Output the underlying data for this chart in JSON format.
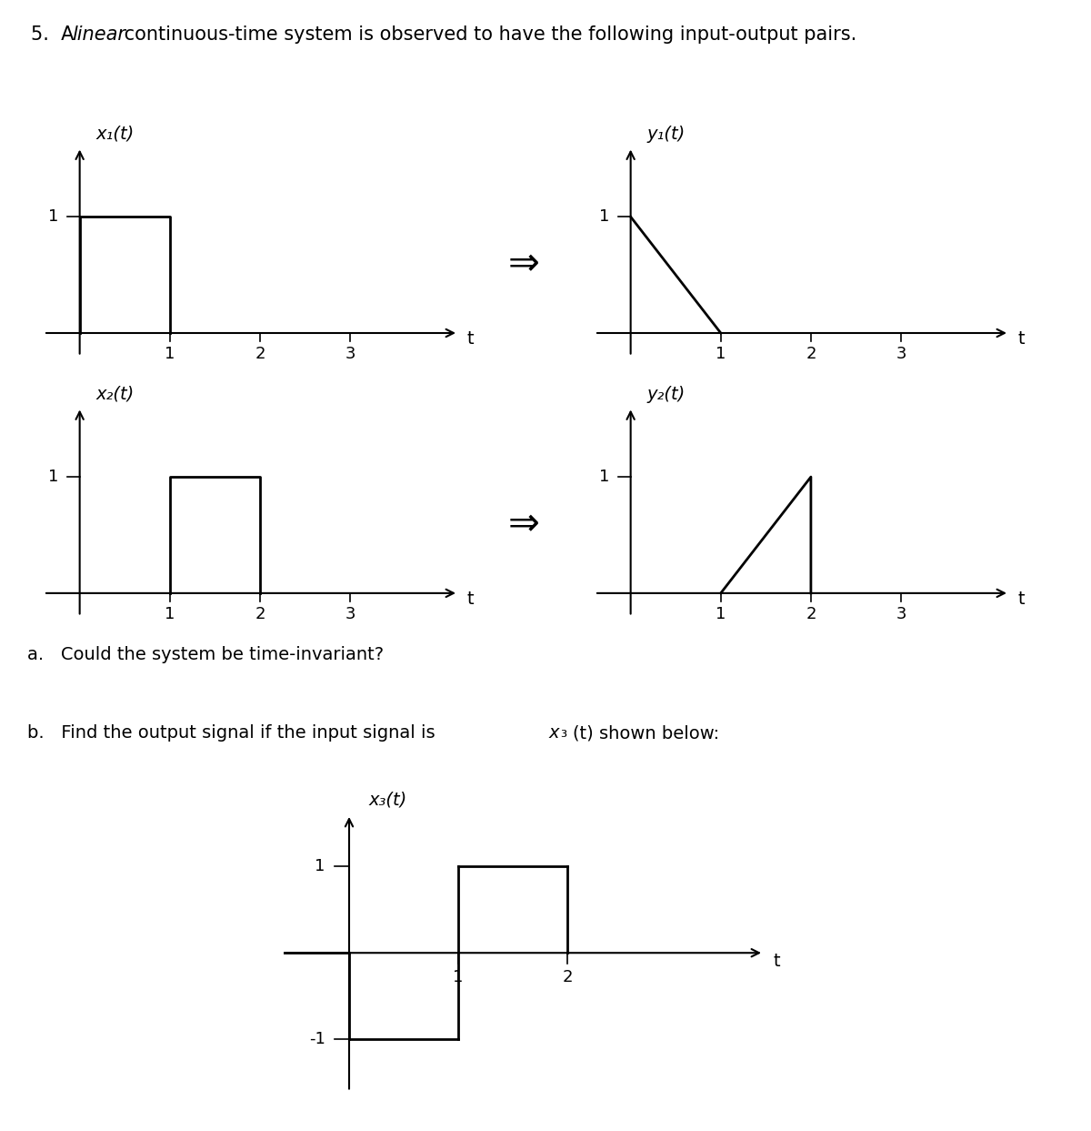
{
  "background": "#ffffff",
  "title_num": "5.  A ",
  "title_italic": "linear",
  "title_rest": " continuous-time system is observed to have the following input-output pairs.",
  "question_a": "a.   Could the system be time-invariant?",
  "question_b_pre": "b.   Find the output signal if the input signal is ",
  "question_b_italic": "x",
  "question_b_sub": "₃",
  "question_b_post": "(t) shown below:",
  "title_fontsize": 15,
  "label_fontsize": 14,
  "tick_fontsize": 13,
  "question_fontsize": 14
}
